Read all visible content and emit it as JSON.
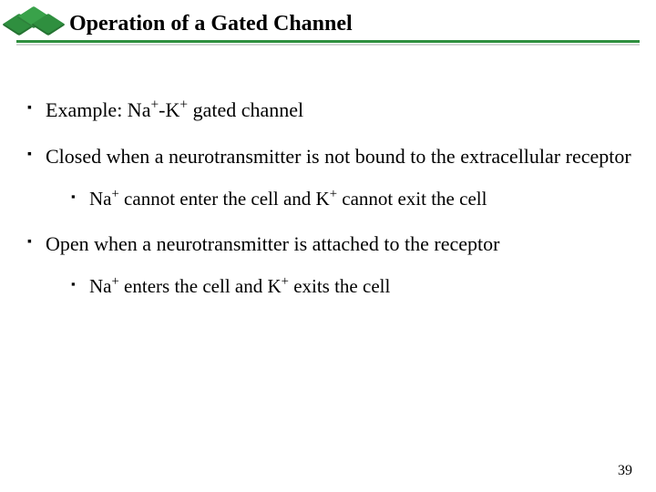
{
  "colors": {
    "accent": "#2f8f3f",
    "rule_shadow": "#d7d7d7",
    "text": "#000000",
    "background": "#ffffff"
  },
  "header": {
    "title": "Operation of a Gated Channel"
  },
  "bullets": {
    "b1_parts": {
      "pre": "Example: Na",
      "mid": "-K",
      "post": " gated channel",
      "sup1": "+",
      "sup2": "+"
    },
    "b2": "Closed when a neurotransmitter is not bound to the extracellular receptor",
    "b2_sub_parts": {
      "pre": "Na",
      "mid": " cannot enter the cell and K",
      "post": " cannot exit the cell",
      "sup1": "+",
      "sup2": "+"
    },
    "b3": "Open when a neurotransmitter is attached to the receptor",
    "b3_sub_parts": {
      "pre": "Na",
      "mid": " enters the cell and K",
      "post": " exits the cell",
      "sup1": "+",
      "sup2": "+"
    }
  },
  "page_number": "39"
}
